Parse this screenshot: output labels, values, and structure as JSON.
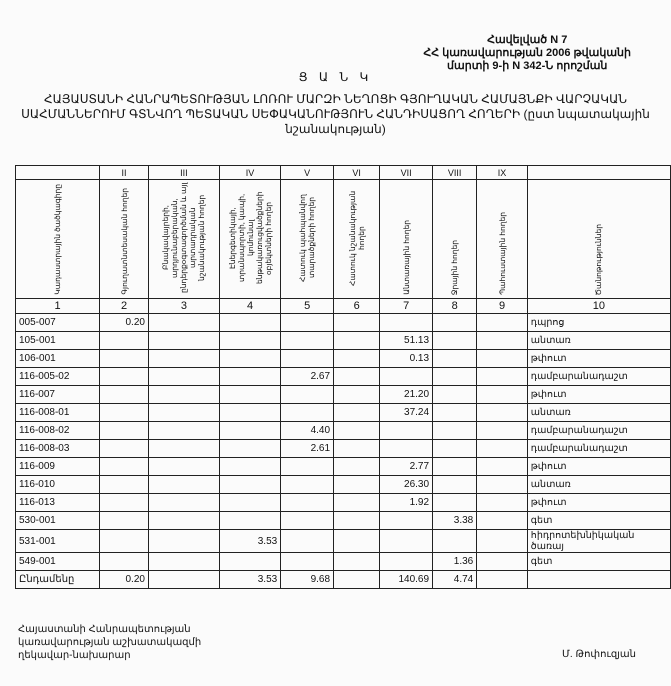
{
  "annex": {
    "line1": "Հավելված N 7",
    "line2": "ՀՀ կառավարության 2006 թվականի",
    "line3": "մարտի 9-ի N 342-Ն որոշման"
  },
  "title": "Ց Ա Ն Կ",
  "subtitle": "ՀԱՅԱՍՏԱՆԻ ՀԱՆՐԱՊԵՏՈՒԹՅԱՆ ԼՈՌՈՒ ՄԱՐԶԻ ՆԵՂՈՑԻ ԳՅՈՒՂԱԿԱՆ ՀԱՄԱՅՆՔԻ ՎԱՐՉԱԿԱՆ ՍԱՀՄԱՆՆԵՐՈՒՄ ԳՏՆՎՈՂ ՊԵՏԱԿԱՆ ՍԵՓԱԿԱՆՈՒԹՅՈՒՆ ՀԱՆԴԻՍԱՑՈՂ ՀՈՂԵՐԻ (ըստ նպատակային նշանակության)",
  "table": {
    "roman": [
      "",
      "II",
      "III",
      "IV",
      "V",
      "VI",
      "VII",
      "VIII",
      "IX",
      ""
    ],
    "headers": [
      "Կադաստրային ծածկագիրը",
      "Գյուղատնտեսական հողեր",
      "Բնակավայրերի, արդյունաբերական, ընդերքօգտագործման և այլ արտադրական նշանակության հողեր",
      "Էներգետիկայի, տրանսպորտի, կապի, կոմունալ ենթակառուցվածքների օբյեկտների հողեր",
      "Հատուկ պահպանվող տարածքների հողեր",
      "Հատուկ նշանակության հողեր",
      "Անտառային հողեր",
      "Ջրային հողեր",
      "Պահուստային հողեր",
      "Ծանոթություններ"
    ],
    "numbers": [
      "1",
      "2",
      "3",
      "4",
      "5",
      "6",
      "7",
      "8",
      "9",
      "10"
    ],
    "rows": [
      [
        "005-007",
        "0.20",
        "",
        "",
        "",
        "",
        "",
        "",
        "",
        "դպրոց"
      ],
      [
        "105-001",
        "",
        "",
        "",
        "",
        "",
        "51.13",
        "",
        "",
        "անտառ"
      ],
      [
        "106-001",
        "",
        "",
        "",
        "",
        "",
        "0.13",
        "",
        "",
        "թփուտ"
      ],
      [
        "116-005-02",
        "",
        "",
        "",
        "2.67",
        "",
        "",
        "",
        "",
        "դամբարանադաշտ"
      ],
      [
        "116-007",
        "",
        "",
        "",
        "",
        "",
        "21.20",
        "",
        "",
        "թփուտ"
      ],
      [
        "116-008-01",
        "",
        "",
        "",
        "",
        "",
        "37.24",
        "",
        "",
        "անտառ"
      ],
      [
        "116-008-02",
        "",
        "",
        "",
        "4.40",
        "",
        "",
        "",
        "",
        "դամբարանադաշտ"
      ],
      [
        "116-008-03",
        "",
        "",
        "",
        "2.61",
        "",
        "",
        "",
        "",
        "դամբարանադաշտ"
      ],
      [
        "116-009",
        "",
        "",
        "",
        "",
        "",
        "2.77",
        "",
        "",
        "թփուտ"
      ],
      [
        "116-010",
        "",
        "",
        "",
        "",
        "",
        "26.30",
        "",
        "",
        "անտառ"
      ],
      [
        "116-013",
        "",
        "",
        "",
        "",
        "",
        "1.92",
        "",
        "",
        "թփուտ"
      ],
      [
        "530-001",
        "",
        "",
        "",
        "",
        "",
        "",
        "3.38",
        "",
        "գետ"
      ],
      [
        "531-001",
        "",
        "",
        "3.53",
        "",
        "",
        "",
        "",
        "",
        "հիդրոտեխնիկական ծառայ"
      ],
      [
        "549-001",
        "",
        "",
        "",
        "",
        "",
        "",
        "1.36",
        "",
        "գետ"
      ],
      [
        "Ընդամենը",
        "0.20",
        "",
        "3.53",
        "9.68",
        "",
        "140.69",
        "4.74",
        "",
        ""
      ]
    ]
  },
  "footer": {
    "line1": "Հայաստանի Հանրապետության",
    "line2": "կառավարության աշխատակազմի",
    "line3": "ղեկավար-նախարար",
    "signature": "Մ. Թոփուզյան"
  }
}
